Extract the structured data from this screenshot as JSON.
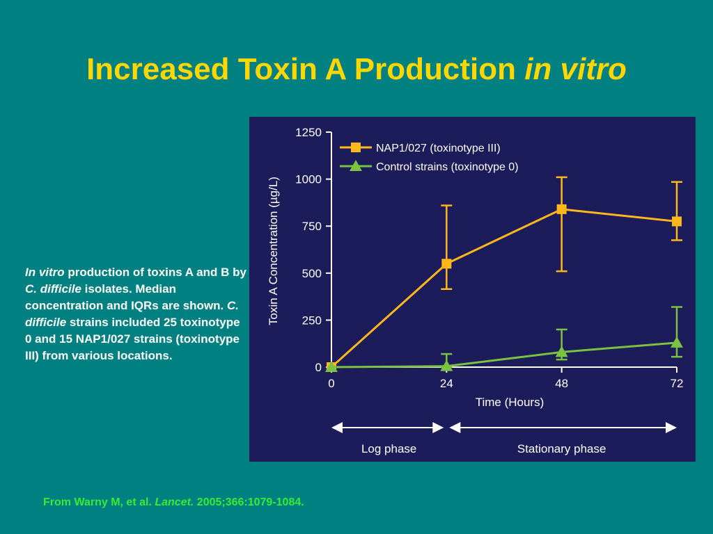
{
  "slide": {
    "title_main": "Increased Toxin A Production ",
    "title_italic": "in vitro",
    "caption": {
      "p1_italic": "In vitro",
      "p2": " production of toxins A and B by ",
      "p3_italic": "C. difficile",
      "p4": " isolates. Median concentration and IQRs are shown. ",
      "p5_italic": "C. difficile",
      "p6": " strains included 25 toxinotype 0 and 15 NAP1/027 strains (toxinotype III) from various locations."
    },
    "source": {
      "prefix": "From Warny M, et al. ",
      "journal": "Lancet.",
      "suffix": " 2005;366:1079-1084."
    }
  },
  "colors": {
    "background": "#008080",
    "panel": "#1c1c5a",
    "title": "#ffd700",
    "nap1": "#ffb81c",
    "control": "#7cc242",
    "source_text": "#33ee33"
  },
  "chart_data": {
    "type": "line",
    "xlabel": "Time (Hours)",
    "ylabel": "Toxin A Concentration (µg/L)",
    "x": [
      0,
      24,
      48,
      72
    ],
    "xticks": [
      "0",
      "24",
      "48",
      "72"
    ],
    "yticks": [
      "0",
      "250",
      "500",
      "750",
      "1000",
      "1250"
    ],
    "ylim": [
      0,
      1250
    ],
    "xlim": [
      0,
      72
    ],
    "legend_placement": "top-left",
    "series": [
      {
        "name": "NAP1/027 (toxinotype III)",
        "marker": "square",
        "color": "#ffb81c",
        "values": [
          0,
          550,
          840,
          775
        ],
        "error_low": [
          0,
          415,
          510,
          675
        ],
        "error_high": [
          0,
          860,
          1010,
          985
        ]
      },
      {
        "name": "Control strains (toxinotype 0)",
        "marker": "triangle",
        "color": "#7cc242",
        "values": [
          0,
          5,
          80,
          130
        ],
        "error_low": [
          0,
          0,
          40,
          55
        ],
        "error_high": [
          0,
          70,
          200,
          320
        ]
      }
    ],
    "phases": [
      {
        "label": "Log phase",
        "from": 0,
        "to": 24
      },
      {
        "label": "Stationary phase",
        "from": 24,
        "to": 72
      }
    ]
  }
}
